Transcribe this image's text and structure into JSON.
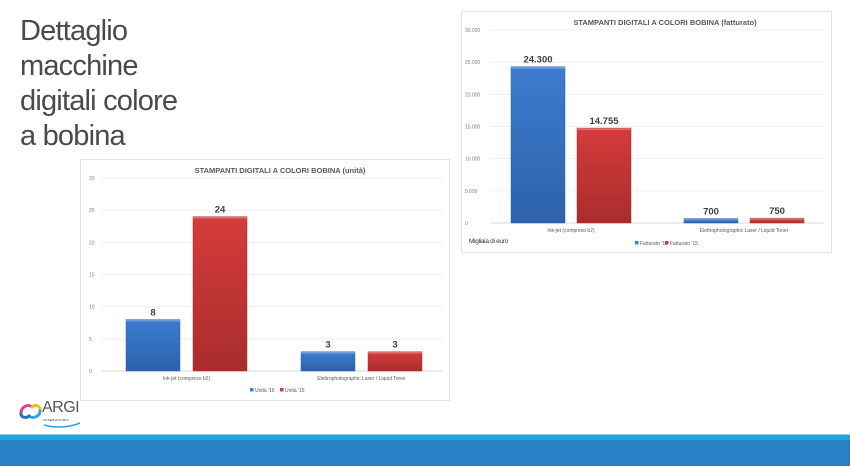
{
  "slide": {
    "title_lines": [
      "Dettaglio",
      "macchine",
      "digitali colore",
      "a bobina"
    ]
  },
  "logo": {
    "name": "ARGI",
    "subtitle": "OSSERVATORIO"
  },
  "colors": {
    "series_2016": "#3d7ccf",
    "series_2015": "#d63b3b",
    "footer_band": "#2682c4",
    "footer_stripe": "#2ba3dc",
    "title_text": "#4a4a4a"
  },
  "chart_data": [
    {
      "id": "unita",
      "type": "bar",
      "title": "STAMPANTI DIGITALI A COLORI BOBINA (unità)",
      "categories": [
        "Ink-jet (compreso b2)",
        "Elettrophotographic Laser / Liquid Toner"
      ],
      "series": [
        {
          "name": "Unità '16",
          "values": [
            8,
            3
          ],
          "labels": [
            "8",
            "3"
          ]
        },
        {
          "name": "Unità '15",
          "values": [
            24,
            3
          ],
          "labels": [
            "24",
            "3"
          ]
        }
      ],
      "ylim": [
        0,
        30
      ],
      "yticks": [
        0,
        5,
        10,
        15,
        20,
        25,
        30
      ],
      "ytick_labels": [
        "0",
        "5",
        "10",
        "15",
        "20",
        "25",
        "30"
      ],
      "xlabel": "",
      "ylabel": "",
      "grid": true,
      "legend": "bottom-center",
      "note": ""
    },
    {
      "id": "fatturato",
      "type": "bar",
      "title": "STAMPANTI DIGITALI A COLORI BOBINA (fatturato)",
      "categories": [
        "Ink-jet (compreso b2)",
        "Elettrophotographic Laser / Liquid Toner"
      ],
      "series": [
        {
          "name": "Fatturato '16",
          "values": [
            24300,
            700
          ],
          "labels": [
            "24.300",
            "700"
          ]
        },
        {
          "name": "Fatturato '15",
          "values": [
            14755,
            750
          ],
          "labels": [
            "14.755",
            "750"
          ]
        }
      ],
      "ylim": [
        0,
        30000
      ],
      "yticks": [
        0,
        5000,
        10000,
        15000,
        20000,
        25000,
        30000
      ],
      "ytick_labels": [
        "0",
        "5.000",
        "10.000",
        "15.000",
        "20.000",
        "25.000",
        "30.000"
      ],
      "xlabel": "",
      "ylabel": "",
      "grid": true,
      "legend": "bottom-center",
      "note": "Migliaia di euro"
    }
  ]
}
